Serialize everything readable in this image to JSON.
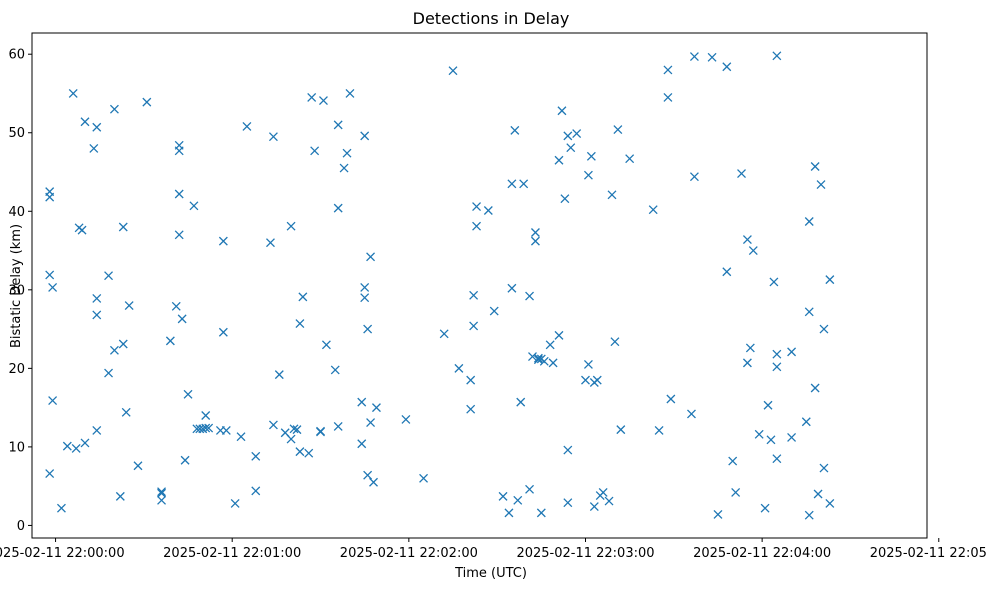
{
  "chart_data": {
    "type": "scatter",
    "title": "Detections in Delay",
    "xlabel": "Time (UTC)",
    "ylabel": "Bistatic Delay (km)",
    "marker": "x",
    "color": "#1f77b4",
    "grid": false,
    "x_is_time": true,
    "xlim": [
      "2025-02-11 21:59:52",
      "2025-02-11 22:04:56"
    ],
    "ylim": [
      -1.6,
      62.7
    ],
    "x_ticks": [
      "2025-02-11 22:00:00",
      "2025-02-11 22:01:00",
      "2025-02-11 22:02:00",
      "2025-02-11 22:03:00",
      "2025-02-11 22:04:00",
      "2025-02-11 22:05:00"
    ],
    "y_ticks": [
      0,
      10,
      20,
      30,
      40,
      50,
      60
    ],
    "points": [
      [
        "2025-02-11 21:59:58",
        41.8
      ],
      [
        "2025-02-11 21:59:58",
        42.5
      ],
      [
        "2025-02-11 21:59:58",
        31.9
      ],
      [
        "2025-02-11 21:59:59",
        30.3
      ],
      [
        "2025-02-11 21:59:59",
        15.9
      ],
      [
        "2025-02-11 21:59:58",
        6.6
      ],
      [
        "2025-02-11 22:00:02",
        2.2
      ],
      [
        "2025-02-11 22:00:04",
        10.1
      ],
      [
        "2025-02-11 22:00:06",
        55.0
      ],
      [
        "2025-02-11 22:00:07",
        9.8
      ],
      [
        "2025-02-11 22:00:08",
        37.9
      ],
      [
        "2025-02-11 22:00:09",
        37.6
      ],
      [
        "2025-02-11 22:00:10",
        51.4
      ],
      [
        "2025-02-11 22:00:10",
        10.5
      ],
      [
        "2025-02-11 22:00:13",
        48.0
      ],
      [
        "2025-02-11 22:00:14",
        50.7
      ],
      [
        "2025-02-11 22:00:14",
        28.9
      ],
      [
        "2025-02-11 22:00:14",
        26.8
      ],
      [
        "2025-02-11 22:00:14",
        12.1
      ],
      [
        "2025-02-11 22:00:18",
        31.8
      ],
      [
        "2025-02-11 22:00:18",
        19.4
      ],
      [
        "2025-02-11 22:00:20",
        53.0
      ],
      [
        "2025-02-11 22:00:20",
        22.3
      ],
      [
        "2025-02-11 22:00:22",
        3.7
      ],
      [
        "2025-02-11 22:00:23",
        38.0
      ],
      [
        "2025-02-11 22:00:23",
        23.1
      ],
      [
        "2025-02-11 22:00:24",
        14.4
      ],
      [
        "2025-02-11 22:00:25",
        28.0
      ],
      [
        "2025-02-11 22:00:28",
        7.6
      ],
      [
        "2025-02-11 22:00:31",
        53.9
      ],
      [
        "2025-02-11 22:00:36",
        4.3
      ],
      [
        "2025-02-11 22:00:36",
        4.1
      ],
      [
        "2025-02-11 22:00:36",
        3.2
      ],
      [
        "2025-02-11 22:00:39",
        23.5
      ],
      [
        "2025-02-11 22:00:41",
        27.9
      ],
      [
        "2025-02-11 22:00:42",
        47.7
      ],
      [
        "2025-02-11 22:00:42",
        48.4
      ],
      [
        "2025-02-11 22:00:42",
        42.2
      ],
      [
        "2025-02-11 22:00:42",
        37.0
      ],
      [
        "2025-02-11 22:00:43",
        26.3
      ],
      [
        "2025-02-11 22:00:44",
        8.3
      ],
      [
        "2025-02-11 22:00:45",
        16.7
      ],
      [
        "2025-02-11 22:00:47",
        40.7
      ],
      [
        "2025-02-11 22:00:48",
        12.3
      ],
      [
        "2025-02-11 22:00:49",
        12.3
      ],
      [
        "2025-02-11 22:00:50",
        12.3
      ],
      [
        "2025-02-11 22:00:51",
        12.4
      ],
      [
        "2025-02-11 22:00:51",
        14.0
      ],
      [
        "2025-02-11 22:00:52",
        12.4
      ],
      [
        "2025-02-11 22:00:56",
        12.1
      ],
      [
        "2025-02-11 22:00:57",
        36.2
      ],
      [
        "2025-02-11 22:00:57",
        24.6
      ],
      [
        "2025-02-11 22:00:58",
        12.1
      ],
      [
        "2025-02-11 22:01:01",
        2.8
      ],
      [
        "2025-02-11 22:01:03",
        11.3
      ],
      [
        "2025-02-11 22:01:05",
        50.8
      ],
      [
        "2025-02-11 22:01:08",
        4.4
      ],
      [
        "2025-02-11 22:01:08",
        8.8
      ],
      [
        "2025-02-11 22:01:13",
        36.0
      ],
      [
        "2025-02-11 22:01:14",
        12.8
      ],
      [
        "2025-02-11 22:01:14",
        49.5
      ],
      [
        "2025-02-11 22:01:16",
        19.2
      ],
      [
        "2025-02-11 22:01:18",
        11.8
      ],
      [
        "2025-02-11 22:01:20",
        11.0
      ],
      [
        "2025-02-11 22:01:20",
        38.1
      ],
      [
        "2025-02-11 22:01:21",
        12.3
      ],
      [
        "2025-02-11 22:01:22",
        12.2
      ],
      [
        "2025-02-11 22:01:23",
        25.7
      ],
      [
        "2025-02-11 22:01:23",
        9.4
      ],
      [
        "2025-02-11 22:01:24",
        29.1
      ],
      [
        "2025-02-11 22:01:26",
        9.2
      ],
      [
        "2025-02-11 22:01:27",
        54.5
      ],
      [
        "2025-02-11 22:01:28",
        47.7
      ],
      [
        "2025-02-11 22:01:30",
        12.0
      ],
      [
        "2025-02-11 22:01:30",
        11.9
      ],
      [
        "2025-02-11 22:01:31",
        54.1
      ],
      [
        "2025-02-11 22:01:32",
        23.0
      ],
      [
        "2025-02-11 22:01:35",
        19.8
      ],
      [
        "2025-02-11 22:01:36",
        51.0
      ],
      [
        "2025-02-11 22:01:36",
        40.4
      ],
      [
        "2025-02-11 22:01:36",
        12.6
      ],
      [
        "2025-02-11 22:01:38",
        45.5
      ],
      [
        "2025-02-11 22:01:39",
        47.4
      ],
      [
        "2025-02-11 22:01:40",
        55.0
      ],
      [
        "2025-02-11 22:01:44",
        15.7
      ],
      [
        "2025-02-11 22:01:44",
        10.4
      ],
      [
        "2025-02-11 22:01:45",
        29.0
      ],
      [
        "2025-02-11 22:01:45",
        30.3
      ],
      [
        "2025-02-11 22:01:45",
        49.6
      ],
      [
        "2025-02-11 22:01:46",
        25.0
      ],
      [
        "2025-02-11 22:01:46",
        6.4
      ],
      [
        "2025-02-11 22:01:47",
        34.2
      ],
      [
        "2025-02-11 22:01:47",
        13.1
      ],
      [
        "2025-02-11 22:01:48",
        5.5
      ],
      [
        "2025-02-11 22:01:49",
        15.0
      ],
      [
        "2025-02-11 22:01:59",
        13.5
      ],
      [
        "2025-02-11 22:02:05",
        6.0
      ],
      [
        "2025-02-11 22:02:12",
        24.4
      ],
      [
        "2025-02-11 22:02:15",
        57.9
      ],
      [
        "2025-02-11 22:02:17",
        20.0
      ],
      [
        "2025-02-11 22:02:21",
        14.8
      ],
      [
        "2025-02-11 22:02:21",
        18.5
      ],
      [
        "2025-02-11 22:02:22",
        29.3
      ],
      [
        "2025-02-11 22:02:22",
        25.4
      ],
      [
        "2025-02-11 22:02:23",
        40.6
      ],
      [
        "2025-02-11 22:02:23",
        38.1
      ],
      [
        "2025-02-11 22:02:27",
        40.1
      ],
      [
        "2025-02-11 22:02:29",
        27.3
      ],
      [
        "2025-02-11 22:02:32",
        3.7
      ],
      [
        "2025-02-11 22:02:34",
        1.6
      ],
      [
        "2025-02-11 22:02:35",
        30.2
      ],
      [
        "2025-02-11 22:02:35",
        43.5
      ],
      [
        "2025-02-11 22:02:36",
        50.3
      ],
      [
        "2025-02-11 22:02:37",
        3.2
      ],
      [
        "2025-02-11 22:02:38",
        15.7
      ],
      [
        "2025-02-11 22:02:39",
        43.5
      ],
      [
        "2025-02-11 22:02:41",
        29.2
      ],
      [
        "2025-02-11 22:02:41",
        4.6
      ],
      [
        "2025-02-11 22:02:42",
        21.5
      ],
      [
        "2025-02-11 22:02:43",
        37.3
      ],
      [
        "2025-02-11 22:02:43",
        36.2
      ],
      [
        "2025-02-11 22:02:44",
        21.3
      ],
      [
        "2025-02-11 22:02:44",
        21.1
      ],
      [
        "2025-02-11 22:02:45",
        21.2
      ],
      [
        "2025-02-11 22:02:45",
        1.6
      ],
      [
        "2025-02-11 22:02:46",
        20.9
      ],
      [
        "2025-02-11 22:02:48",
        23.0
      ],
      [
        "2025-02-11 22:02:49",
        20.7
      ],
      [
        "2025-02-11 22:02:51",
        46.5
      ],
      [
        "2025-02-11 22:02:51",
        24.2
      ],
      [
        "2025-02-11 22:02:52",
        52.8
      ],
      [
        "2025-02-11 22:02:53",
        41.6
      ],
      [
        "2025-02-11 22:02:54",
        49.6
      ],
      [
        "2025-02-11 22:02:54",
        2.9
      ],
      [
        "2025-02-11 22:02:54",
        9.6
      ],
      [
        "2025-02-11 22:02:55",
        48.1
      ],
      [
        "2025-02-11 22:02:57",
        49.9
      ],
      [
        "2025-02-11 22:03:00",
        18.5
      ],
      [
        "2025-02-11 22:03:01",
        20.5
      ],
      [
        "2025-02-11 22:03:01",
        44.6
      ],
      [
        "2025-02-11 22:03:02",
        47.0
      ],
      [
        "2025-02-11 22:03:03",
        2.4
      ],
      [
        "2025-02-11 22:03:03",
        18.2
      ],
      [
        "2025-02-11 22:03:04",
        18.5
      ],
      [
        "2025-02-11 22:03:05",
        3.8
      ],
      [
        "2025-02-11 22:03:06",
        4.2
      ],
      [
        "2025-02-11 22:03:08",
        3.1
      ],
      [
        "2025-02-11 22:03:09",
        42.1
      ],
      [
        "2025-02-11 22:03:10",
        23.4
      ],
      [
        "2025-02-11 22:03:11",
        50.4
      ],
      [
        "2025-02-11 22:03:12",
        12.2
      ],
      [
        "2025-02-11 22:03:15",
        46.7
      ],
      [
        "2025-02-11 22:03:23",
        40.2
      ],
      [
        "2025-02-11 22:03:25",
        12.1
      ],
      [
        "2025-02-11 22:03:28",
        58.0
      ],
      [
        "2025-02-11 22:03:28",
        54.5
      ],
      [
        "2025-02-11 22:03:29",
        16.1
      ],
      [
        "2025-02-11 22:03:36",
        14.2
      ],
      [
        "2025-02-11 22:03:37",
        59.7
      ],
      [
        "2025-02-11 22:03:37",
        44.4
      ],
      [
        "2025-02-11 22:03:43",
        59.6
      ],
      [
        "2025-02-11 22:03:45",
        1.4
      ],
      [
        "2025-02-11 22:03:48",
        58.4
      ],
      [
        "2025-02-11 22:03:48",
        32.3
      ],
      [
        "2025-02-11 22:03:50",
        8.2
      ],
      [
        "2025-02-11 22:03:51",
        4.2
      ],
      [
        "2025-02-11 22:03:53",
        44.8
      ],
      [
        "2025-02-11 22:03:55",
        36.4
      ],
      [
        "2025-02-11 22:03:55",
        20.7
      ],
      [
        "2025-02-11 22:03:56",
        22.6
      ],
      [
        "2025-02-11 22:03:57",
        35.0
      ],
      [
        "2025-02-11 22:03:59",
        11.6
      ],
      [
        "2025-02-11 22:04:01",
        2.2
      ],
      [
        "2025-02-11 22:04:02",
        15.3
      ],
      [
        "2025-02-11 22:04:03",
        10.9
      ],
      [
        "2025-02-11 22:04:04",
        31.0
      ],
      [
        "2025-02-11 22:04:05",
        59.8
      ],
      [
        "2025-02-11 22:04:05",
        21.8
      ],
      [
        "2025-02-11 22:04:05",
        8.5
      ],
      [
        "2025-02-11 22:04:05",
        20.2
      ],
      [
        "2025-02-11 22:04:10",
        22.1
      ],
      [
        "2025-02-11 22:04:10",
        11.2
      ],
      [
        "2025-02-11 22:04:15",
        13.2
      ],
      [
        "2025-02-11 22:04:16",
        38.7
      ],
      [
        "2025-02-11 22:04:16",
        27.2
      ],
      [
        "2025-02-11 22:04:16",
        1.3
      ],
      [
        "2025-02-11 22:04:18",
        17.5
      ],
      [
        "2025-02-11 22:04:18",
        45.7
      ],
      [
        "2025-02-11 22:04:19",
        4.0
      ],
      [
        "2025-02-11 22:04:20",
        43.4
      ],
      [
        "2025-02-11 22:04:21",
        7.3
      ],
      [
        "2025-02-11 22:04:21",
        25.0
      ],
      [
        "2025-02-11 22:04:23",
        31.3
      ],
      [
        "2025-02-11 22:04:23",
        2.8
      ]
    ]
  }
}
